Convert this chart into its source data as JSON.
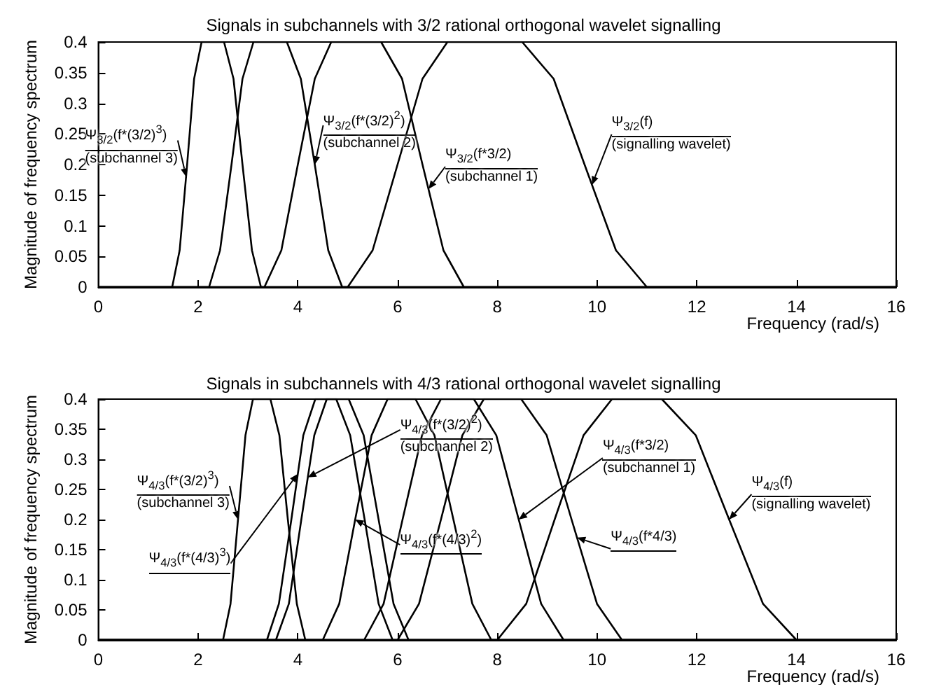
{
  "chart_data": [
    {
      "type": "line",
      "title": "Signals in subchannels with 3/2 rational orthogonal wavelet signalling",
      "xlabel": "Frequency (rad/s)",
      "ylabel": "Magnitude of frequency spectrum",
      "xlim": [
        0,
        16
      ],
      "xticks": [
        0,
        2,
        4,
        6,
        8,
        10,
        12,
        14,
        16
      ],
      "ylim": [
        0,
        0.4
      ],
      "yticks": [
        0,
        0.05,
        0.1,
        0.15,
        0.2,
        0.25,
        0.3,
        0.35,
        0.4
      ],
      "marker": "none",
      "line_style": "solid",
      "series": [
        {
          "color": "#000000",
          "x": [
            0,
            5.0,
            5.5,
            6.0,
            6.5,
            7.0,
            8.5,
            9.13,
            9.75,
            10.38,
            11.0,
            16
          ],
          "values": [
            0,
            0,
            0.06,
            0.2,
            0.34,
            0.4,
            0.4,
            0.34,
            0.2,
            0.06,
            0,
            0
          ]
        },
        {
          "color": "#000000",
          "x": [
            0,
            3.33,
            3.67,
            4.0,
            4.34,
            4.67,
            5.67,
            6.09,
            6.5,
            6.92,
            7.33,
            16
          ],
          "values": [
            0,
            0,
            0.06,
            0.2,
            0.34,
            0.4,
            0.4,
            0.34,
            0.2,
            0.06,
            0,
            0
          ]
        },
        {
          "color": "#000000",
          "x": [
            0,
            2.22,
            2.44,
            2.67,
            2.89,
            3.11,
            3.78,
            4.06,
            4.34,
            4.61,
            4.89,
            16
          ],
          "values": [
            0,
            0,
            0.06,
            0.2,
            0.34,
            0.4,
            0.4,
            0.34,
            0.2,
            0.06,
            0,
            0
          ]
        },
        {
          "color": "#000000",
          "x": [
            0,
            1.48,
            1.63,
            1.78,
            1.92,
            2.07,
            2.52,
            2.71,
            2.89,
            3.08,
            3.26,
            16
          ],
          "values": [
            0,
            0,
            0.06,
            0.2,
            0.34,
            0.4,
            0.4,
            0.34,
            0.2,
            0.06,
            0,
            0
          ]
        }
      ],
      "annotations": [
        {
          "text": "Ψ$_{3/2}$(f*(3/2)$^{3}$)\n(subchannel 3)",
          "x": 1.76,
          "y": 0.18
        },
        {
          "text": "Ψ$_{3/2}$(f*(3/2)$^{2}$)\n(subchannel 2)",
          "x": 4.34,
          "y": 0.2
        },
        {
          "text": "Ψ$_{3/2}$(f*3/2)\n(subchannel 1)",
          "x": 6.62,
          "y": 0.16
        },
        {
          "text": "Ψ$_{3/2}$(f)\n(signalling wavelet)",
          "x": 9.9,
          "y": 0.167
        }
      ]
    },
    {
      "type": "line",
      "title": "Signals in subchannels with 4/3 rational orthogonal wavelet signalling",
      "xlabel": "Frequency (rad/s)",
      "ylabel": "Magnitude of frequency spectrum",
      "xlim": [
        0,
        16
      ],
      "xticks": [
        0,
        2,
        4,
        6,
        8,
        10,
        12,
        14,
        16
      ],
      "ylim": [
        0,
        0.4
      ],
      "yticks": [
        0,
        0.05,
        0.1,
        0.15,
        0.2,
        0.25,
        0.3,
        0.35,
        0.4
      ],
      "marker": "none",
      "line_style": "solid",
      "series": [
        {
          "color": "#000000",
          "x": [
            0,
            8.0,
            8.58,
            9.15,
            9.73,
            10.3,
            11.3,
            11.98,
            12.65,
            13.33,
            14.0,
            16
          ],
          "values": [
            0,
            0,
            0.06,
            0.2,
            0.34,
            0.4,
            0.4,
            0.34,
            0.2,
            0.06,
            0,
            0
          ]
        },
        {
          "color": "#000000",
          "x": [
            0,
            5.33,
            5.72,
            6.1,
            6.49,
            6.87,
            7.53,
            7.98,
            8.43,
            8.88,
            9.33,
            16
          ],
          "values": [
            0,
            0,
            0.06,
            0.2,
            0.34,
            0.4,
            0.4,
            0.34,
            0.2,
            0.06,
            0,
            0
          ]
        },
        {
          "color": "#000000",
          "x": [
            0,
            6.0,
            6.43,
            6.87,
            7.3,
            7.73,
            8.48,
            8.99,
            9.49,
            10.0,
            10.5,
            16
          ],
          "values": [
            0,
            0,
            0.06,
            0.2,
            0.34,
            0.4,
            0.4,
            0.34,
            0.2,
            0.06,
            0,
            0
          ]
        },
        {
          "color": "#000000",
          "x": [
            0,
            4.5,
            4.83,
            5.15,
            5.48,
            5.8,
            6.36,
            6.74,
            7.12,
            7.5,
            7.88,
            16
          ],
          "values": [
            0,
            0,
            0.06,
            0.2,
            0.34,
            0.4,
            0.4,
            0.34,
            0.2,
            0.06,
            0,
            0
          ]
        },
        {
          "color": "#000000",
          "x": [
            0,
            3.56,
            3.82,
            4.07,
            4.33,
            4.58,
            5.02,
            5.32,
            5.62,
            5.92,
            6.22,
            16
          ],
          "values": [
            0,
            0,
            0.06,
            0.2,
            0.34,
            0.4,
            0.4,
            0.34,
            0.2,
            0.06,
            0,
            0
          ]
        },
        {
          "color": "#000000",
          "x": [
            0,
            3.38,
            3.62,
            3.87,
            4.11,
            4.35,
            4.77,
            5.05,
            5.34,
            5.62,
            5.9,
            16
          ],
          "values": [
            0,
            0,
            0.06,
            0.2,
            0.34,
            0.4,
            0.4,
            0.34,
            0.2,
            0.06,
            0,
            0
          ]
        },
        {
          "color": "#000000",
          "x": [
            0,
            2.5,
            2.65,
            2.8,
            2.95,
            3.1,
            3.45,
            3.63,
            3.8,
            3.98,
            4.15,
            16
          ],
          "values": [
            0,
            0,
            0.06,
            0.2,
            0.34,
            0.4,
            0.4,
            0.34,
            0.2,
            0.06,
            0,
            0
          ]
        }
      ],
      "annotations": [
        {
          "text": "Ψ$_{4/3}$(f*(3/2)$^{3}$)\n(subchannel 3)",
          "x": 2.8,
          "y": 0.2
        },
        {
          "text": "Ψ$_{4/3}$(f*(4/3)$^{3}$)",
          "x": 4.0,
          "y": 0.276
        },
        {
          "text": "Ψ$_{4/3}$(f*(3/2)$^{2}$)\n(subchannel 2)",
          "x": 4.2,
          "y": 0.27
        },
        {
          "text": "Ψ$_{4/3}$(f*(4/3)$^{2}$)",
          "x": 5.15,
          "y": 0.2
        },
        {
          "text": "Ψ$_{4/3}$(f*3/2)\n(subchannel 1)",
          "x": 8.43,
          "y": 0.2
        },
        {
          "text": "Ψ$_{4/3}$(f*4/3)",
          "x": 9.6,
          "y": 0.17
        },
        {
          "text": "Ψ$_{4/3}$(f)\n(signalling wavelet)",
          "x": 12.65,
          "y": 0.2
        }
      ]
    }
  ]
}
